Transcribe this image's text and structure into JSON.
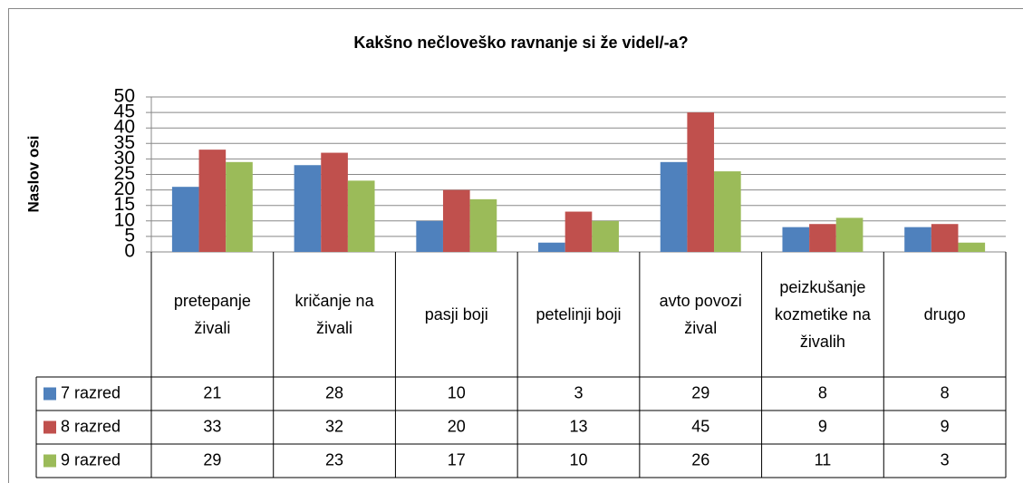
{
  "chart_data": {
    "type": "bar",
    "title": "Kakšno nečloveško ravnanje si že videl/-a?",
    "y_label": "Naslov osi",
    "categories": [
      "pretepanje živali",
      "kričanje na živali",
      "pasji boji",
      "petelinji boji",
      "avto povozi žival",
      "peizkušanje kozmetike na živalih",
      "drugo"
    ],
    "series": [
      {
        "name": "7 razred",
        "color": "#4f81bd",
        "values": [
          21,
          28,
          10,
          3,
          29,
          8,
          8
        ]
      },
      {
        "name": "8 razred",
        "color": "#c0504d",
        "values": [
          33,
          32,
          20,
          13,
          45,
          9,
          9
        ]
      },
      {
        "name": "9 razred",
        "color": "#9bbb59",
        "values": [
          29,
          23,
          17,
          10,
          26,
          11,
          3
        ]
      }
    ],
    "ylim": [
      0,
      50
    ],
    "yticks": [
      0,
      5,
      10,
      15,
      20,
      25,
      30,
      35,
      40,
      45,
      50
    ],
    "grid": true,
    "data_table": true
  }
}
